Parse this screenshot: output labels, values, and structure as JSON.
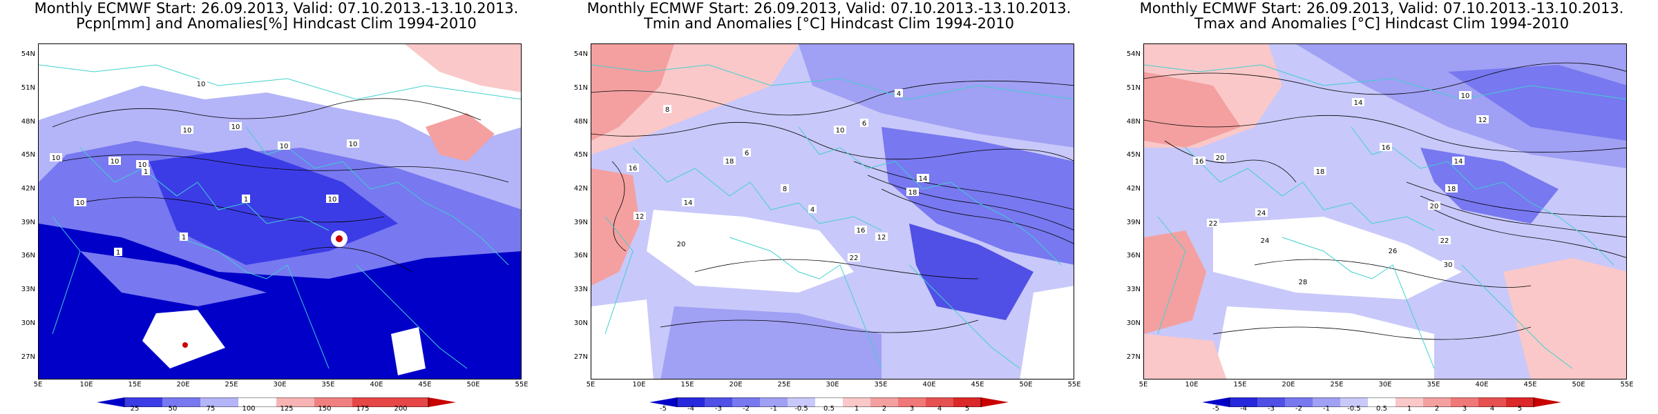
{
  "panels": [
    {
      "title_line1": "Monthly ECMWF Start: 26.09.2013, Valid: 07.10.2013.-13.10.2013.",
      "title_line2": "Pcpn[mm] and Anomalies[%] Hindcast Clim 1994-2010",
      "colorbar_ticks": [
        "25",
        "50",
        "75",
        "100",
        "125",
        "150",
        "175",
        "200"
      ],
      "colorbar_colors": [
        "#0000c8",
        "#3c3ce6",
        "#7878f0",
        "#b4b4f8",
        "#ffffff",
        "#f8b4b4",
        "#f08080",
        "#e64646",
        "#c80000"
      ],
      "contour_labels": [
        "10",
        "10",
        "10",
        "10",
        "10",
        "10",
        "10",
        "10",
        "10",
        "10",
        "1",
        "1",
        "1",
        "1"
      ]
    },
    {
      "title_line1": "Monthly ECMWF Start: 26.09.2013, Valid: 07.10.2013.-13.10.2013.",
      "title_line2": "Tmin and Anomalies [°C] Hindcast Clim 1994-2010",
      "colorbar_ticks": [
        "-5",
        "-4",
        "-3",
        "-2",
        "-1",
        "-0.5",
        "0.5",
        "1",
        "2",
        "3",
        "4",
        "5"
      ],
      "colorbar_colors": [
        "#0000c8",
        "#2828dc",
        "#5050e6",
        "#7878f0",
        "#a0a0f4",
        "#c8c8fa",
        "#ffffff",
        "#fac8c8",
        "#f4a0a0",
        "#f07878",
        "#e65050",
        "#dc2828",
        "#c80000"
      ],
      "contour_labels": [
        "4",
        "6",
        "8",
        "10",
        "12",
        "14",
        "16",
        "18",
        "20",
        "22",
        "4",
        "6",
        "8",
        "12",
        "14",
        "16",
        "18"
      ]
    },
    {
      "title_line1": "Monthly ECMWF Start: 26.09.2013, Valid: 07.10.2013.-13.10.2013.",
      "title_line2": "Tmax and Anomalies [°C] Hindcast Clim 1994-2010",
      "colorbar_ticks": [
        "-5",
        "-4",
        "-3",
        "-2",
        "-1",
        "-0.5",
        "0.5",
        "1",
        "2",
        "3",
        "4",
        "5"
      ],
      "colorbar_colors": [
        "#0000c8",
        "#2828dc",
        "#5050e6",
        "#7878f0",
        "#a0a0f4",
        "#c8c8fa",
        "#ffffff",
        "#fac8c8",
        "#f4a0a0",
        "#f07878",
        "#e65050",
        "#dc2828",
        "#c80000"
      ],
      "contour_labels": [
        "10",
        "12",
        "14",
        "16",
        "18",
        "20",
        "22",
        "24",
        "26",
        "28",
        "30",
        "14",
        "16",
        "18",
        "20",
        "22",
        "24"
      ]
    }
  ],
  "lat_labels": [
    "54N",
    "51N",
    "48N",
    "45N",
    "42N",
    "39N",
    "36N",
    "33N",
    "30N",
    "27N"
  ],
  "lon_labels": [
    "5E",
    "10E",
    "15E",
    "20E",
    "25E",
    "30E",
    "35E",
    "40E",
    "45E",
    "50E",
    "55E"
  ]
}
